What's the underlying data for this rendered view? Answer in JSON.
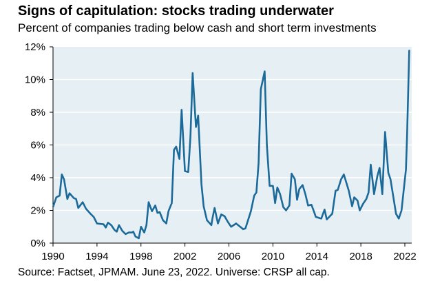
{
  "chart_data": {
    "type": "line",
    "title": "Signs of capitulation: stocks trading underwater",
    "subtitle": "Percent of companies trading below cash and short term investments",
    "source": "Source: Factset, JPMAM. June 23, 2022. Universe: CRSP all cap.",
    "xlabel": "",
    "ylabel": "",
    "xlim": [
      1990,
      2022.6
    ],
    "ylim": [
      0,
      12
    ],
    "grid": true,
    "legend": "none",
    "x_ticks": [
      1990,
      1994,
      1998,
      2002,
      2006,
      2010,
      2014,
      2018,
      2022
    ],
    "x_tick_labels": [
      "1990",
      "1994",
      "1998",
      "2002",
      "2006",
      "2010",
      "2014",
      "2018",
      "2022"
    ],
    "y_ticks": [
      0,
      2,
      4,
      6,
      8,
      10,
      12
    ],
    "y_tick_labels": [
      "0%",
      "2%",
      "4%",
      "6%",
      "8%",
      "10%",
      "12%"
    ],
    "colors": {
      "line": "#1b6a9a",
      "plot_bg": "#e6eff4",
      "grid": "#ffffff"
    },
    "series": [
      {
        "name": "Percent of companies trading below cash",
        "x": [
          1990.0,
          1990.3,
          1990.6,
          1990.8,
          1991.0,
          1991.3,
          1991.5,
          1991.9,
          1992.1,
          1992.3,
          1992.7,
          1993.0,
          1993.4,
          1993.7,
          1994.0,
          1994.6,
          1994.8,
          1995.0,
          1995.3,
          1995.6,
          1995.8,
          1996.0,
          1996.3,
          1996.6,
          1996.9,
          1997.2,
          1997.3,
          1997.5,
          1997.8,
          1998.0,
          1998.3,
          1998.5,
          1998.7,
          1999.0,
          1999.3,
          1999.5,
          1999.7,
          2000.0,
          2000.3,
          2000.5,
          2000.8,
          2001.0,
          2001.2,
          2001.5,
          2001.7,
          2002.0,
          2002.3,
          2002.5,
          2002.7,
          2003.0,
          2003.2,
          2003.5,
          2003.7,
          2004.0,
          2004.4,
          2004.5,
          2004.7,
          2005.0,
          2005.3,
          2005.6,
          2005.9,
          2006.2,
          2006.65,
          2007.3,
          2007.5,
          2008.0,
          2008.3,
          2008.5,
          2008.7,
          2008.9,
          2009.25,
          2009.45,
          2009.7,
          2010.0,
          2010.2,
          2010.4,
          2010.65,
          2010.95,
          2011.2,
          2011.5,
          2011.7,
          2012.0,
          2012.2,
          2012.4,
          2012.7,
          2012.95,
          2013.2,
          2013.5,
          2013.75,
          2013.9,
          2014.4,
          2014.7,
          2014.9,
          2015.4,
          2015.7,
          2015.9,
          2016.2,
          2016.45,
          2016.9,
          2017.2,
          2017.4,
          2017.7,
          2017.9,
          2018.2,
          2018.5,
          2018.7,
          2018.9,
          2019.2,
          2019.5,
          2019.7,
          2019.95,
          2020.2,
          2020.5,
          2020.7,
          2021.2,
          2021.45,
          2021.7,
          2022.1,
          2022.2,
          2022.4
        ],
        "values": [
          2.2,
          2.8,
          2.9,
          4.2,
          3.9,
          2.7,
          3.05,
          2.75,
          2.7,
          2.15,
          2.5,
          2.1,
          1.8,
          1.6,
          1.2,
          1.15,
          0.95,
          1.25,
          1.1,
          0.8,
          0.7,
          1.1,
          0.75,
          0.55,
          0.65,
          0.65,
          0.7,
          0.4,
          0.3,
          1.0,
          0.65,
          1.1,
          2.5,
          1.95,
          2.3,
          1.85,
          1.9,
          1.4,
          1.2,
          1.95,
          2.45,
          5.7,
          5.9,
          5.15,
          8.15,
          4.4,
          4.35,
          6.5,
          10.4,
          7.1,
          7.8,
          3.6,
          2.25,
          1.4,
          1.1,
          1.5,
          2.15,
          1.2,
          1.75,
          1.65,
          1.3,
          1.0,
          1.2,
          0.85,
          0.9,
          1.95,
          2.9,
          3.1,
          4.9,
          9.4,
          10.5,
          6.0,
          3.5,
          3.5,
          2.45,
          3.4,
          3.0,
          2.2,
          2.0,
          2.3,
          4.25,
          3.9,
          2.65,
          3.3,
          3.55,
          3.0,
          2.3,
          2.35,
          1.9,
          1.6,
          1.5,
          2.05,
          1.45,
          1.8,
          3.2,
          3.25,
          3.9,
          4.2,
          3.2,
          2.25,
          2.8,
          2.6,
          2.0,
          2.4,
          2.7,
          3.1,
          4.8,
          3.0,
          4.1,
          4.6,
          3.0,
          6.8,
          4.3,
          3.9,
          1.8,
          1.5,
          2.0,
          4.5,
          6.5,
          11.8
        ]
      }
    ]
  }
}
